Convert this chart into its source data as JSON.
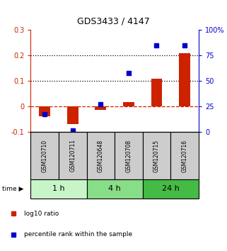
{
  "title": "GDS3433 / 4147",
  "samples": [
    "GSM120710",
    "GSM120711",
    "GSM120648",
    "GSM120708",
    "GSM120715",
    "GSM120716"
  ],
  "log10_ratio": [
    -0.04,
    -0.07,
    -0.015,
    0.018,
    0.11,
    0.21
  ],
  "percentile_rank": [
    17.5,
    1.0,
    27.0,
    58.0,
    85.0,
    85.0
  ],
  "time_groups": [
    {
      "label": "1 h",
      "start": 0,
      "end": 2,
      "color": "#c8f5c8"
    },
    {
      "label": "4 h",
      "start": 2,
      "end": 4,
      "color": "#88dd88"
    },
    {
      "label": "24 h",
      "start": 4,
      "end": 6,
      "color": "#44bb44"
    }
  ],
  "ylim_left": [
    -0.1,
    0.3
  ],
  "ylim_right": [
    0,
    100
  ],
  "yticks_left": [
    -0.1,
    0.0,
    0.1,
    0.2,
    0.3
  ],
  "yticks_right": [
    0,
    25,
    50,
    75,
    100
  ],
  "ytick_labels_left": [
    "-0.1",
    "0",
    "0.1",
    "0.2",
    "0.3"
  ],
  "ytick_labels_right": [
    "0",
    "25",
    "50",
    "75",
    "100%"
  ],
  "hlines": [
    0.1,
    0.2
  ],
  "bar_color": "#cc2200",
  "dot_color": "#0000cc",
  "zero_line_color": "#cc2200",
  "legend_items": [
    {
      "color": "#cc2200",
      "label": "log10 ratio"
    },
    {
      "color": "#0000cc",
      "label": "percentile rank within the sample"
    }
  ],
  "sample_box_color": "#cccccc",
  "bar_width": 0.4
}
